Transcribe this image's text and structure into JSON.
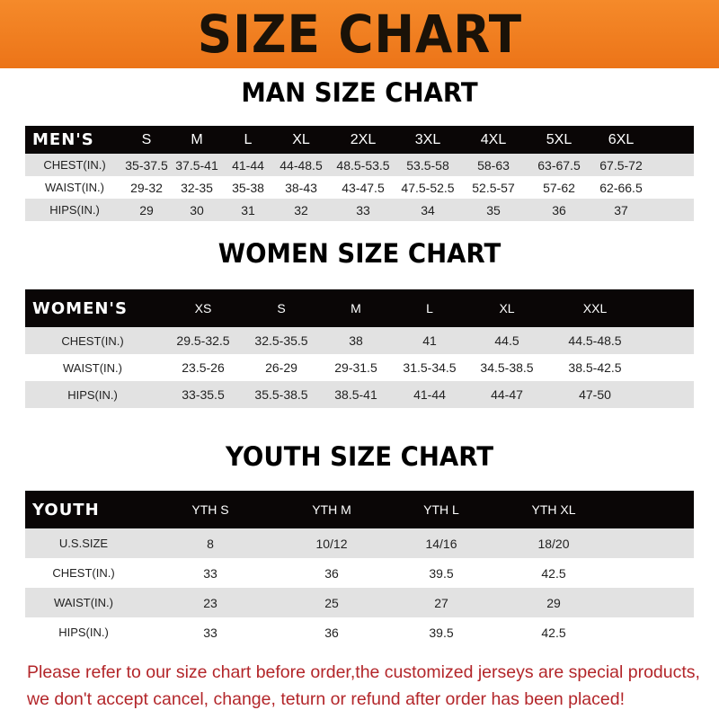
{
  "banner_title": "SIZE CHART",
  "colors": {
    "banner": "#f07d1f",
    "header_row": "#0a0606",
    "stripe": "#e2e2e2",
    "notice": "#b3262a"
  },
  "tables": {
    "men": {
      "title": "MAN SIZE CHART",
      "header": [
        "MEN'S",
        "S",
        "M",
        "L",
        "XL",
        "2XL",
        "3XL",
        "4XL",
        "5XL",
        "6XL"
      ],
      "rows": [
        [
          "CHEST(IN.)",
          "35-37.5",
          "37.5-41",
          "41-44",
          "44-48.5",
          "48.5-53.5",
          "53.5-58",
          "58-63",
          "63-67.5",
          "67.5-72"
        ],
        [
          "WAIST(IN.)",
          "29-32",
          "32-35",
          "35-38",
          "38-43",
          "43-47.5",
          "47.5-52.5",
          "52.5-57",
          "57-62",
          "62-66.5"
        ],
        [
          "HIPS(IN.)",
          "29",
          "30",
          "31",
          "32",
          "33",
          "34",
          "35",
          "36",
          "37"
        ]
      ]
    },
    "women": {
      "title": "WOMEN SIZE CHART",
      "header": [
        "WOMEN'S",
        "XS",
        "S",
        "M",
        "L",
        "XL",
        "XXL"
      ],
      "rows": [
        [
          "CHEST(IN.)",
          "29.5-32.5",
          "32.5-35.5",
          "38",
          "41",
          "44.5",
          "44.5-48.5"
        ],
        [
          "WAIST(IN.)",
          "23.5-26",
          "26-29",
          "29-31.5",
          "31.5-34.5",
          "34.5-38.5",
          "38.5-42.5"
        ],
        [
          "HIPS(IN.)",
          "33-35.5",
          "35.5-38.5",
          "38.5-41",
          "41-44",
          "44-47",
          "47-50"
        ]
      ]
    },
    "youth": {
      "title": "YOUTH SIZE CHART",
      "header": [
        "YOUTH",
        "YTH S",
        "YTH M",
        "YTH L",
        "YTH XL"
      ],
      "rows": [
        [
          "U.S.SIZE",
          "8",
          "10/12",
          "14/16",
          "18/20"
        ],
        [
          "CHEST(IN.)",
          "33",
          "36",
          "39.5",
          "42.5"
        ],
        [
          "WAIST(IN.)",
          "23",
          "25",
          "27",
          "29"
        ],
        [
          "HIPS(IN.)",
          "33",
          "36",
          "39.5",
          "42.5"
        ]
      ]
    }
  },
  "notice": {
    "line1": "Please refer to our size chart before order,the customized jerseys are special products,",
    "line2": "we don't accept cancel, change, teturn or refund after order has been placed!"
  }
}
